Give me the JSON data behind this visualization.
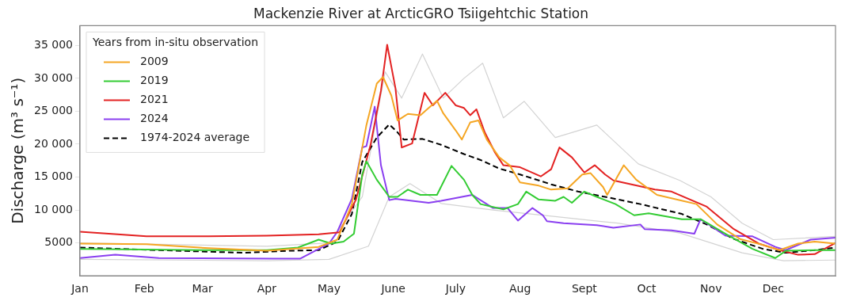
{
  "chart_data": {
    "type": "line",
    "title": "Mackenzie River at ArcticGRO Tsiigehtchic Station",
    "ylabel": "Discharge (m³ s⁻¹)",
    "legend_title": "Years from in-situ observation",
    "legend": "top left",
    "grid": false,
    "xlim": [
      "--01-01",
      "--12-31"
    ],
    "xticks": [
      {
        "value": "--01-01",
        "label": "Jan"
      },
      {
        "value": "--02-01",
        "label": "Feb"
      },
      {
        "value": "--03-01",
        "label": "Mar"
      },
      {
        "value": "--04-01",
        "label": "Apr"
      },
      {
        "value": "--05-01",
        "label": "May"
      },
      {
        "value": "--06-01",
        "label": "June"
      },
      {
        "value": "--07-01",
        "label": "July"
      },
      {
        "value": "--08-01",
        "label": "Aug"
      },
      {
        "value": "--09-01",
        "label": "Sept"
      },
      {
        "value": "--10-01",
        "label": "Oct"
      },
      {
        "value": "--11-01",
        "label": "Nov"
      },
      {
        "value": "--12-01",
        "label": "Dec"
      }
    ],
    "ylim": [
      0,
      38000
    ],
    "yticks": [
      5000,
      {
        "value": 10000,
        "label": "10 000"
      },
      {
        "value": 15000,
        "label": "15 000"
      },
      {
        "value": 20000,
        "label": "20 000"
      },
      {
        "value": 25000,
        "label": "25 000"
      },
      {
        "value": 30000,
        "label": "30 000"
      },
      {
        "value": 35000,
        "label": "35 000"
      }
    ],
    "series": [
      {
        "name": "2009",
        "color": "#f5a623",
        "x": [
          "--01-01",
          "--02-02",
          "--03-04",
          "--04-01",
          "--04-26",
          "--05-05",
          "--05-12",
          "--05-19",
          "--05-24",
          "--05-27",
          "--05-31",
          "--06-03",
          "--06-08",
          "--06-14",
          "--06-18",
          "--06-22",
          "--06-25",
          "--07-01",
          "--07-04",
          "--07-08",
          "--07-12",
          "--07-16",
          "--07-22",
          "--07-27",
          "--08-01",
          "--08-10",
          "--08-16",
          "--08-24",
          "--08-31",
          "--09-04",
          "--09-10",
          "--09-12",
          "--09-20",
          "--09-26",
          "--10-06",
          "--10-25",
          "--11-04",
          "--11-15",
          "--11-26",
          "--12-04",
          "--12-13",
          "--12-21",
          "--12-31"
        ],
        "values": [
          4900,
          4800,
          4200,
          3800,
          4400,
          5500,
          10900,
          22900,
          29200,
          30200,
          27400,
          23600,
          24600,
          24400,
          25500,
          26600,
          24700,
          22100,
          20700,
          23300,
          23600,
          20700,
          18000,
          16800,
          14200,
          13700,
          13100,
          13300,
          15400,
          15600,
          13500,
          12300,
          16800,
          14600,
          12300,
          10900,
          7800,
          5600,
          4700,
          3900,
          4900,
          5200,
          4900
        ]
      },
      {
        "name": "2019",
        "color": "#33cc33",
        "x": [
          "--01-01",
          "--02-02",
          "--03-04",
          "--04-01",
          "--04-16",
          "--04-26",
          "--05-02",
          "--05-08",
          "--05-13",
          "--05-17",
          "--05-19",
          "--05-24",
          "--05-30",
          "--06-03",
          "--06-08",
          "--06-14",
          "--06-22",
          "--06-29",
          "--07-05",
          "--07-09",
          "--07-13",
          "--07-24",
          "--07-31",
          "--08-04",
          "--08-10",
          "--08-18",
          "--08-22",
          "--08-26",
          "--09-01",
          "--09-07",
          "--09-16",
          "--09-25",
          "--10-02",
          "--10-18",
          "--10-27",
          "--11-08",
          "--11-21",
          "--12-02",
          "--12-07",
          "--12-21",
          "--12-31"
        ],
        "values": [
          4100,
          4000,
          3900,
          3900,
          4300,
          5500,
          4900,
          5200,
          6400,
          15400,
          17400,
          14600,
          12000,
          12000,
          13100,
          12300,
          12300,
          16700,
          14600,
          12300,
          10900,
          10100,
          10900,
          12800,
          11600,
          11400,
          12000,
          11100,
          12800,
          12000,
          10900,
          9200,
          9500,
          8600,
          8600,
          6400,
          4100,
          2700,
          3800,
          3900,
          3900
        ]
      },
      {
        "name": "2021",
        "color": "#e32222",
        "x": [
          "--01-01",
          "--02-02",
          "--03-04",
          "--04-01",
          "--04-26",
          "--05-06",
          "--05-14",
          "--05-21",
          "--05-26",
          "--05-29",
          "--06-02",
          "--06-05",
          "--06-10",
          "--06-16",
          "--06-20",
          "--06-26",
          "--07-01",
          "--07-05",
          "--07-08",
          "--07-11",
          "--07-15",
          "--07-20",
          "--07-24",
          "--08-01",
          "--08-11",
          "--08-16",
          "--08-20",
          "--08-26",
          "--09-01",
          "--09-06",
          "--09-11",
          "--09-15",
          "--10-05",
          "--10-13",
          "--10-30",
          "--11-12",
          "--11-24",
          "--12-04",
          "--12-13",
          "--12-21",
          "--12-31"
        ],
        "values": [
          6700,
          6000,
          6000,
          6100,
          6300,
          6600,
          11600,
          19900,
          28100,
          35100,
          28500,
          19500,
          20100,
          27800,
          25900,
          27800,
          25900,
          25500,
          24400,
          25300,
          21800,
          18700,
          16800,
          16500,
          15100,
          16200,
          19500,
          18000,
          15700,
          16800,
          15400,
          14500,
          13100,
          12800,
          10500,
          7100,
          4900,
          3900,
          3200,
          3300,
          5000
        ]
      },
      {
        "name": "2024",
        "color": "#8a3ff0",
        "x": [
          "--01-01",
          "--01-18",
          "--02-08",
          "--04-04",
          "--04-17",
          "--05-01",
          "--05-05",
          "--05-12",
          "--05-17",
          "--05-19",
          "--05-23",
          "--05-26",
          "--05-30",
          "--06-02",
          "--06-10",
          "--06-18",
          "--06-24",
          "--06-29",
          "--07-09",
          "--07-19",
          "--07-26",
          "--07-31",
          "--08-07",
          "--08-12",
          "--08-14",
          "--08-22",
          "--09-07",
          "--09-15",
          "--09-28",
          "--09-30",
          "--10-13",
          "--10-24",
          "--10-27",
          "--11-08",
          "--11-21",
          "--12-02",
          "--12-07",
          "--12-19",
          "--12-31"
        ],
        "values": [
          2700,
          3200,
          2700,
          2600,
          2600,
          4900,
          6700,
          11700,
          19500,
          19700,
          25700,
          16800,
          11500,
          11700,
          11400,
          11100,
          11400,
          11700,
          12300,
          10300,
          10300,
          8400,
          10300,
          9200,
          8300,
          8000,
          7700,
          7300,
          7800,
          7100,
          6900,
          6400,
          8600,
          6100,
          6000,
          4400,
          3900,
          5500,
          5800
        ]
      },
      {
        "name": "1974-2024 average",
        "color": "#000000",
        "line_style": "dashed",
        "x": [
          "--01-01",
          "--02-08",
          "--03-21",
          "--04-11",
          "--04-26",
          "--05-05",
          "--05-12",
          "--05-17",
          "--05-24",
          "--05-30",
          "--06-03",
          "--06-06",
          "--06-15",
          "--06-24",
          "--07-05",
          "--07-13",
          "--07-22",
          "--08-01",
          "--08-16",
          "--08-29",
          "--09-11",
          "--09-28",
          "--10-18",
          "--10-30",
          "--11-12",
          "--11-26",
          "--12-07",
          "--12-21",
          "--12-31"
        ],
        "values": [
          4300,
          3900,
          3500,
          3800,
          3900,
          5200,
          9400,
          17300,
          21000,
          23000,
          21800,
          20700,
          20800,
          19900,
          18500,
          17600,
          16300,
          15400,
          13900,
          12800,
          12000,
          10900,
          9400,
          7800,
          5600,
          4100,
          3500,
          3900,
          4300
        ]
      },
      {
        "color": "#d3d3d3",
        "x": [
          "--01-01",
          "--04-01",
          "--05-01",
          "--05-17",
          "--05-28",
          "--06-05",
          "--06-15",
          "--06-25",
          "--07-05",
          "--07-14",
          "--07-24",
          "--08-03",
          "--08-18",
          "--09-07",
          "--09-27",
          "--10-17",
          "--11-01",
          "--11-16",
          "--12-01",
          "--12-31"
        ],
        "values": [
          5000,
          4500,
          5000,
          12000,
          31000,
          27000,
          33700,
          27000,
          30000,
          32300,
          24000,
          26500,
          21000,
          22900,
          17000,
          14500,
          12000,
          8000,
          5500,
          6000
        ]
      },
      {
        "color": "#d3d3d3",
        "x": [
          "--01-01",
          "--04-01",
          "--05-01",
          "--05-20",
          "--05-30",
          "--06-09",
          "--06-24",
          "--07-19",
          "--08-18",
          "--09-17",
          "--10-17",
          "--11-16",
          "--12-06",
          "--12-31"
        ],
        "values": [
          2500,
          2300,
          2500,
          4500,
          12000,
          14000,
          11000,
          10000,
          9000,
          8000,
          6500,
          3500,
          2300,
          2400
        ]
      }
    ]
  }
}
